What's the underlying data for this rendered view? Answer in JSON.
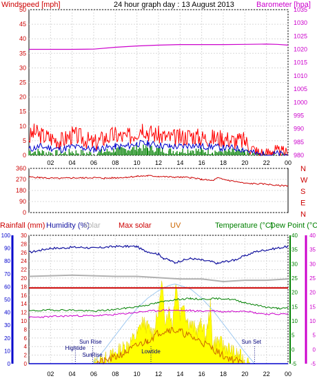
{
  "chart_data": [
    {
      "type": "line",
      "panel": "wind-barometer",
      "title": "24 hour graph day : 13 August 2013",
      "ylabel": "Windspeed [mph]",
      "ylabel_right": "Barometer [hpa]",
      "ylim": [
        0,
        50
      ],
      "yticks": [
        0,
        5,
        10,
        15,
        20,
        25,
        30,
        35,
        40,
        45,
        50
      ],
      "ylim_right": [
        980,
        1035
      ],
      "yticks_right": [
        980,
        985,
        990,
        995,
        1000,
        1005,
        1010,
        1015,
        1020,
        1025,
        1030,
        1035
      ],
      "xlim": [
        0,
        24
      ],
      "xticks": [
        "02",
        "04",
        "06",
        "08",
        "10",
        "12",
        "14",
        "16",
        "18",
        "20",
        "22",
        "00"
      ],
      "grid": true,
      "colors": {
        "gust": "#ff0000",
        "average": "#0000cc",
        "calm": "#008000",
        "barometer": "#cc00cc",
        "axis_left": "#cc0000",
        "axis_right": "#cc00cc"
      },
      "series": [
        {
          "x": [
            0,
            0.5,
            1,
            2,
            3,
            4,
            5,
            6,
            7,
            8,
            9,
            10,
            10.5,
            11,
            12,
            13,
            14,
            15,
            16,
            17,
            18,
            19,
            20,
            21,
            22,
            22.5,
            23,
            24
          ],
          "values": [
            6,
            8,
            7,
            6,
            5,
            7,
            6,
            4,
            6,
            7,
            6,
            8,
            10,
            8,
            7,
            6,
            6,
            7,
            6,
            6,
            6,
            5,
            5,
            1,
            0,
            2,
            0.5,
            0
          ]
        },
        {
          "x": [
            0,
            1,
            2,
            3,
            4,
            5,
            6,
            7,
            8,
            9,
            10,
            11,
            12,
            13,
            14,
            15,
            16,
            17,
            18,
            19,
            20,
            21,
            22,
            23,
            24
          ],
          "values": [
            2,
            3,
            2.5,
            2,
            3,
            2.5,
            2,
            2.5,
            3,
            3,
            4,
            4,
            3.5,
            3,
            3,
            3.5,
            3,
            3,
            2.5,
            2.5,
            2,
            0.5,
            0,
            0.5,
            0
          ]
        },
        {
          "x": [
            0,
            1,
            2,
            3,
            4,
            5,
            6,
            7,
            8,
            9,
            10,
            11,
            12,
            13,
            14,
            15,
            16,
            17,
            18,
            19,
            20,
            21,
            22,
            23,
            24
          ],
          "values": [
            1.5,
            1.2,
            0.8,
            0.6,
            1.2,
            0.8,
            0.6,
            1.2,
            1.8,
            2,
            2.5,
            2.5,
            2,
            1.5,
            1.5,
            1.8,
            1.5,
            1.4,
            1.2,
            1.2,
            1,
            0,
            0,
            0,
            0
          ]
        },
        {
          "x": [
            0,
            2,
            4,
            6,
            8,
            10,
            12,
            14,
            16,
            18,
            20,
            22,
            23,
            24
          ],
          "values": [
            1020.0,
            1020.0,
            1020.0,
            1020.1,
            1020.8,
            1021.3,
            1021.6,
            1021.8,
            1021.8,
            1021.8,
            1021.9,
            1022.0,
            1021.9,
            1021.6
          ]
        }
      ]
    },
    {
      "type": "line",
      "panel": "wind-direction",
      "ylim": [
        0,
        360
      ],
      "yticks": [
        0,
        90,
        180,
        270,
        360
      ],
      "direction_labels": [
        "N",
        "W",
        "S",
        "E",
        "N"
      ],
      "xlim": [
        0,
        24
      ],
      "xticks": [
        "02",
        "04",
        "06",
        "08",
        "10",
        "12",
        "14",
        "16",
        "18",
        "20",
        "22",
        "00"
      ],
      "grid": true,
      "colors": {
        "direction": "#cc0000"
      },
      "series": [
        {
          "x": [
            0,
            1,
            2,
            3,
            4,
            5,
            6,
            7,
            8,
            9,
            10,
            11,
            12,
            13,
            14,
            15,
            16,
            17,
            17.5,
            18,
            19,
            20,
            21,
            22,
            23,
            24
          ],
          "values": [
            290,
            285,
            280,
            278,
            283,
            282,
            285,
            280,
            283,
            288,
            295,
            300,
            295,
            290,
            288,
            285,
            270,
            260,
            282,
            270,
            255,
            238,
            235,
            232,
            220,
            220
          ]
        }
      ]
    },
    {
      "type": "area",
      "panel": "rain-humidity-solar-uv-temperature",
      "legend": [
        "Rainfall (mm)",
        "Humidity (%)",
        "Solar",
        "Max solar",
        "UV",
        "Temperature (°C)",
        "Dew Point (°C)"
      ],
      "ylim_rainfall": [
        0,
        100
      ],
      "yticks_rainfall": [
        0,
        10,
        20,
        30,
        40,
        50,
        60,
        70,
        80,
        90,
        100
      ],
      "ylim_humidity": [
        0,
        30
      ],
      "yticks_humidity": [
        0,
        2,
        4,
        6,
        8,
        10,
        12,
        14,
        16,
        18,
        20,
        22,
        24,
        26,
        28,
        30
      ],
      "ylim_temperature": [
        -5,
        40
      ],
      "yticks_temperature": [
        -5,
        0,
        5,
        10,
        15,
        20,
        25,
        30,
        35,
        40
      ],
      "yticks_dewpoint": [
        -5,
        0,
        5,
        10,
        15,
        20,
        25,
        30,
        35,
        40
      ],
      "xlim": [
        0,
        24
      ],
      "xticks": [
        "02",
        "04",
        "06",
        "08",
        "10",
        "12",
        "14",
        "16",
        "18",
        "20",
        "22",
        "00"
      ],
      "grid": true,
      "colors": {
        "rainfall": "#0000cc",
        "humidity": "#1414a0",
        "solar": "#ffff00",
        "max_solar": "#cc0000",
        "uv": "#cc6600",
        "temperature": "#008000",
        "dewpoint": "#cc00cc",
        "gray": "#b0b0b0",
        "sun_curve": "#9ec8f0"
      },
      "annotations": [
        {
          "text": "Hightide",
          "x": 4.3
        },
        {
          "text": "Sun Rise",
          "x": 5.7
        },
        {
          "text": "Sun",
          "x": 5.4
        },
        {
          "text": "Rise",
          "x": 6.3
        },
        {
          "text": "Lowtide",
          "x": 11.3
        },
        {
          "text": "Sun Set",
          "x": 20.6
        }
      ],
      "series": [
        {
          "name": "Humidity (%)",
          "x": [
            0,
            1,
            2,
            3,
            4,
            5,
            6,
            7,
            8,
            9,
            10,
            10.5,
            11,
            12,
            12.5,
            13,
            13.5,
            14,
            15,
            16,
            17,
            17.5,
            18,
            19,
            20,
            21,
            22,
            23,
            24
          ],
          "values": [
            26,
            26.5,
            27,
            27,
            27.2,
            27.2,
            27,
            27.2,
            27.4,
            27.4,
            27.4,
            26.6,
            26.2,
            25.6,
            24.6,
            24.2,
            23.6,
            24,
            24.6,
            24.2,
            23.8,
            23.4,
            23.8,
            24.2,
            25.2,
            26.2,
            26.6,
            27,
            27.4
          ]
        },
        {
          "name": "gray",
          "x": [
            0,
            4,
            8,
            10,
            12,
            14,
            16,
            18,
            20,
            22,
            24
          ],
          "values": [
            68,
            69,
            68,
            68,
            67,
            66,
            66,
            64,
            65,
            65,
            66
          ]
        },
        {
          "name": "Max solar",
          "x": [
            0,
            24
          ],
          "values": [
            59,
            59
          ]
        },
        {
          "name": "Temperature (°C)",
          "x": [
            0,
            2,
            4,
            6,
            8,
            10,
            11,
            12,
            13,
            14,
            15,
            16,
            17,
            18,
            19,
            20,
            21,
            22,
            23,
            24
          ],
          "values": [
            13.5,
            13.8,
            13.8,
            13.4,
            14,
            15,
            15.6,
            16.4,
            17.2,
            17.6,
            17.8,
            17.6,
            17.8,
            17.8,
            17.4,
            16.4,
            15.6,
            14.8,
            14.4,
            14.4
          ]
        },
        {
          "name": "Dew Point (°C)",
          "x": [
            0,
            2,
            4,
            6,
            8,
            10,
            11,
            12,
            13,
            14,
            15,
            16,
            17,
            18,
            19,
            20,
            21,
            22,
            23,
            24
          ],
          "values": [
            11.2,
            11.5,
            11.8,
            11.8,
            12.2,
            13,
            13.4,
            13.6,
            13.8,
            13.6,
            13.6,
            13.4,
            13.6,
            13.2,
            13.4,
            13.6,
            12.8,
            12.4,
            12.4,
            12.4
          ]
        },
        {
          "name": "sun_curve",
          "x": [
            5.9,
            7,
            8,
            9,
            10,
            11,
            12,
            13,
            13.5,
            14,
            15,
            16,
            17,
            18,
            19,
            20,
            20.9
          ],
          "values": [
            0,
            11,
            22,
            33,
            43,
            51,
            57,
            61,
            62,
            61,
            58,
            51,
            42,
            31,
            20,
            9,
            0
          ]
        },
        {
          "name": "Solar",
          "x": [
            6,
            7,
            8,
            9,
            10,
            10.5,
            11,
            11.5,
            12,
            12.3,
            12.6,
            13,
            13.3,
            13.6,
            14,
            14.3,
            14.6,
            15,
            15.3,
            15.6,
            16,
            16.4,
            16.8,
            17,
            17.5,
            18,
            18.5,
            19,
            19.5,
            20,
            20.5
          ],
          "values": [
            0,
            3,
            8,
            14,
            22,
            33,
            28,
            24,
            40,
            62,
            35,
            42,
            30,
            64,
            38,
            50,
            34,
            30,
            28,
            25,
            32,
            20,
            45,
            15,
            18,
            14,
            12,
            8,
            6,
            3,
            0
          ]
        },
        {
          "name": "UV",
          "x": [
            6,
            7,
            8,
            9,
            10,
            11,
            12,
            13,
            14,
            15,
            16,
            17,
            18,
            19,
            20
          ],
          "values": [
            0,
            2,
            5,
            9,
            14,
            18,
            24,
            27,
            25,
            21,
            17,
            12,
            6,
            3,
            0
          ]
        },
        {
          "name": "Rainfall (mm)",
          "x": [
            0,
            24
          ],
          "values": [
            0,
            0
          ]
        }
      ]
    }
  ]
}
